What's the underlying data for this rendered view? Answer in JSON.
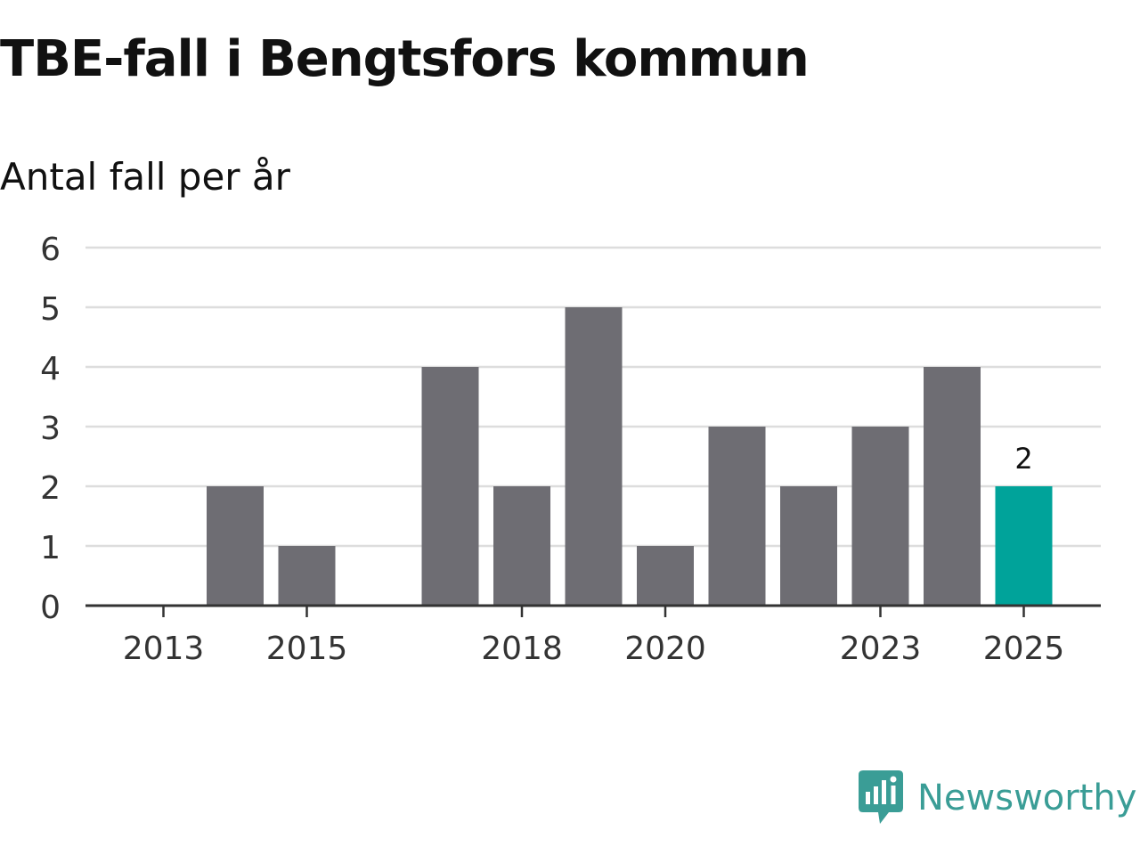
{
  "title": "TBE-fall i Bengtsfors kommun",
  "subtitle": "Antal fall per år",
  "brand": {
    "name": "Newsworthy",
    "color": "#3a9d96",
    "icon": "newsworthy-logo-icon"
  },
  "colors": {
    "bar": "#6e6d73",
    "highlight": "#00a39a",
    "grid": "#dddddd",
    "axis": "#333333",
    "text": "#333333"
  },
  "chart_data": {
    "type": "bar",
    "title": "TBE-fall i Bengtsfors kommun",
    "subtitle": "Antal fall per år",
    "xlabel": "",
    "ylabel": "",
    "categories": [
      "2013",
      "2014",
      "2015",
      "2016",
      "2017",
      "2018",
      "2019",
      "2020",
      "2021",
      "2022",
      "2023",
      "2024",
      "2025"
    ],
    "values": [
      0,
      2,
      1,
      0,
      4,
      2,
      5,
      1,
      3,
      2,
      3,
      4,
      2
    ],
    "x_tick_labels": [
      "2013",
      "2015",
      "2018",
      "2020",
      "2023",
      "2025"
    ],
    "y_ticks": [
      0,
      1,
      2,
      3,
      4,
      5,
      6
    ],
    "ylim": [
      0,
      6
    ],
    "grid": true,
    "highlight_category": "2025",
    "annotations": [
      {
        "category": "2025",
        "text": "2"
      }
    ]
  }
}
